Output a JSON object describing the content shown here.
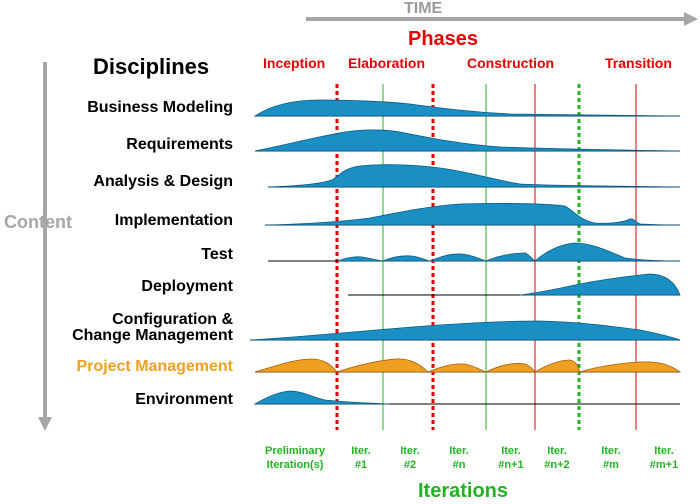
{
  "header": {
    "time_label": "TIME",
    "phases_title": "Phases",
    "disciplines_title": "Disciplines",
    "content_label": "Content",
    "iterations_title": "Iterations"
  },
  "phases": [
    {
      "label": "Inception"
    },
    {
      "label": "Elaboration"
    },
    {
      "label": "Construction"
    },
    {
      "label": "Transition"
    }
  ],
  "disciplines": [
    {
      "label": "Business Modeling",
      "color": "#1a8fc4"
    },
    {
      "label": "Requirements",
      "color": "#1a8fc4"
    },
    {
      "label": "Analysis & Design",
      "color": "#1a8fc4"
    },
    {
      "label": "Implementation",
      "color": "#1a8fc4"
    },
    {
      "label": "Test",
      "color": "#1a8fc4"
    },
    {
      "label": "Deployment",
      "color": "#1a8fc4"
    },
    {
      "label_line1": "Configuration &",
      "label_line2": "Change Management",
      "color": "#1a8fc4"
    },
    {
      "label": "Project Management",
      "color": "#f0a020"
    },
    {
      "label": "Environment",
      "color": "#1a8fc4"
    }
  ],
  "iterations": [
    {
      "line1": "Preliminary",
      "line2": "Iteration(s)"
    },
    {
      "line1": "Iter.",
      "line2": "#1"
    },
    {
      "line1": "Iter.",
      "line2": "#2"
    },
    {
      "line1": "Iter.",
      "line2": "#n"
    },
    {
      "line1": "Iter.",
      "line2": "#n+1"
    },
    {
      "line1": "Iter.",
      "line2": "#n+2"
    },
    {
      "line1": "Iter.",
      "line2": "#m"
    },
    {
      "line1": "Iter.",
      "line2": "#m+1"
    }
  ],
  "colors": {
    "phase_red": "#e60000",
    "iteration_green": "#22b322",
    "hump_blue": "#1a8fc4",
    "hump_orange": "#f0a020",
    "arrow_gray": "#a6a6a6"
  }
}
